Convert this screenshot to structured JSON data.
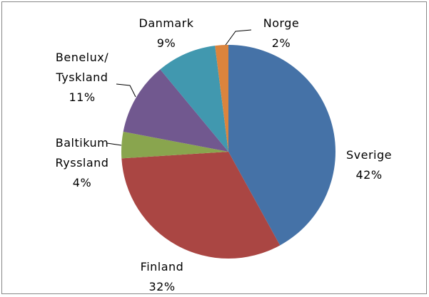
{
  "chart_data": {
    "type": "pie",
    "categories": [
      "Sverige",
      "Finland",
      "Baltikum\nRyssland",
      "Benelux/\nTyskland",
      "Danmark",
      "Norge"
    ],
    "values": [
      42,
      32,
      4,
      11,
      9,
      2
    ],
    "value_labels": [
      "42%",
      "32%",
      "4%",
      "11%",
      "9%",
      "2%"
    ],
    "colors": [
      "#4572a7",
      "#aa4643",
      "#89a54e",
      "#71588f",
      "#4198af",
      "#db843d"
    ]
  }
}
